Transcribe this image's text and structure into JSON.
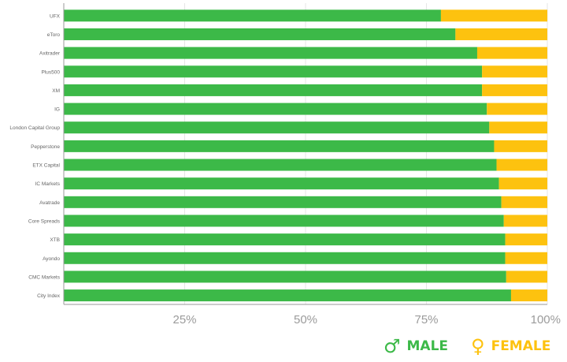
{
  "chart_data": {
    "type": "bar",
    "orientation": "horizontal",
    "stacked": true,
    "categories": [
      "UFX",
      "eToro",
      "Axitrader",
      "Plus500",
      "XM",
      "IG",
      "London Capital Group",
      "Pepperstone",
      "ETX Capital",
      "IC Markets",
      "Avatrade",
      "Core Spreads",
      "XTB",
      "Ayondo",
      "CMC Markets",
      "City Index"
    ],
    "series": [
      {
        "name": "MALE",
        "symbol": "♂",
        "color": "#3cb948",
        "values": [
          78,
          81,
          85.5,
          86.5,
          86.5,
          87.5,
          88,
          89,
          89.5,
          90,
          90.5,
          91,
          91.3,
          91.3,
          91.5,
          92.5
        ]
      },
      {
        "name": "FEMALE",
        "symbol": "♀",
        "color": "#fdc20f",
        "values": [
          22,
          19,
          14.5,
          13.5,
          13.5,
          12.5,
          12,
          11,
          10.5,
          10,
          9.5,
          9,
          8.7,
          8.7,
          8.5,
          7.5
        ]
      }
    ],
    "xlim": [
      0,
      100
    ],
    "x_ticks": [
      25,
      50,
      75,
      100
    ],
    "x_tick_labels": [
      "25%",
      "50%",
      "75%",
      "100%"
    ],
    "grid": true,
    "legend_position": "bottom-right",
    "colors": {
      "grid": "#e6e6e6",
      "axis": "#999999",
      "tick_text": "#9b9b9b",
      "category_text": "#666666"
    }
  }
}
